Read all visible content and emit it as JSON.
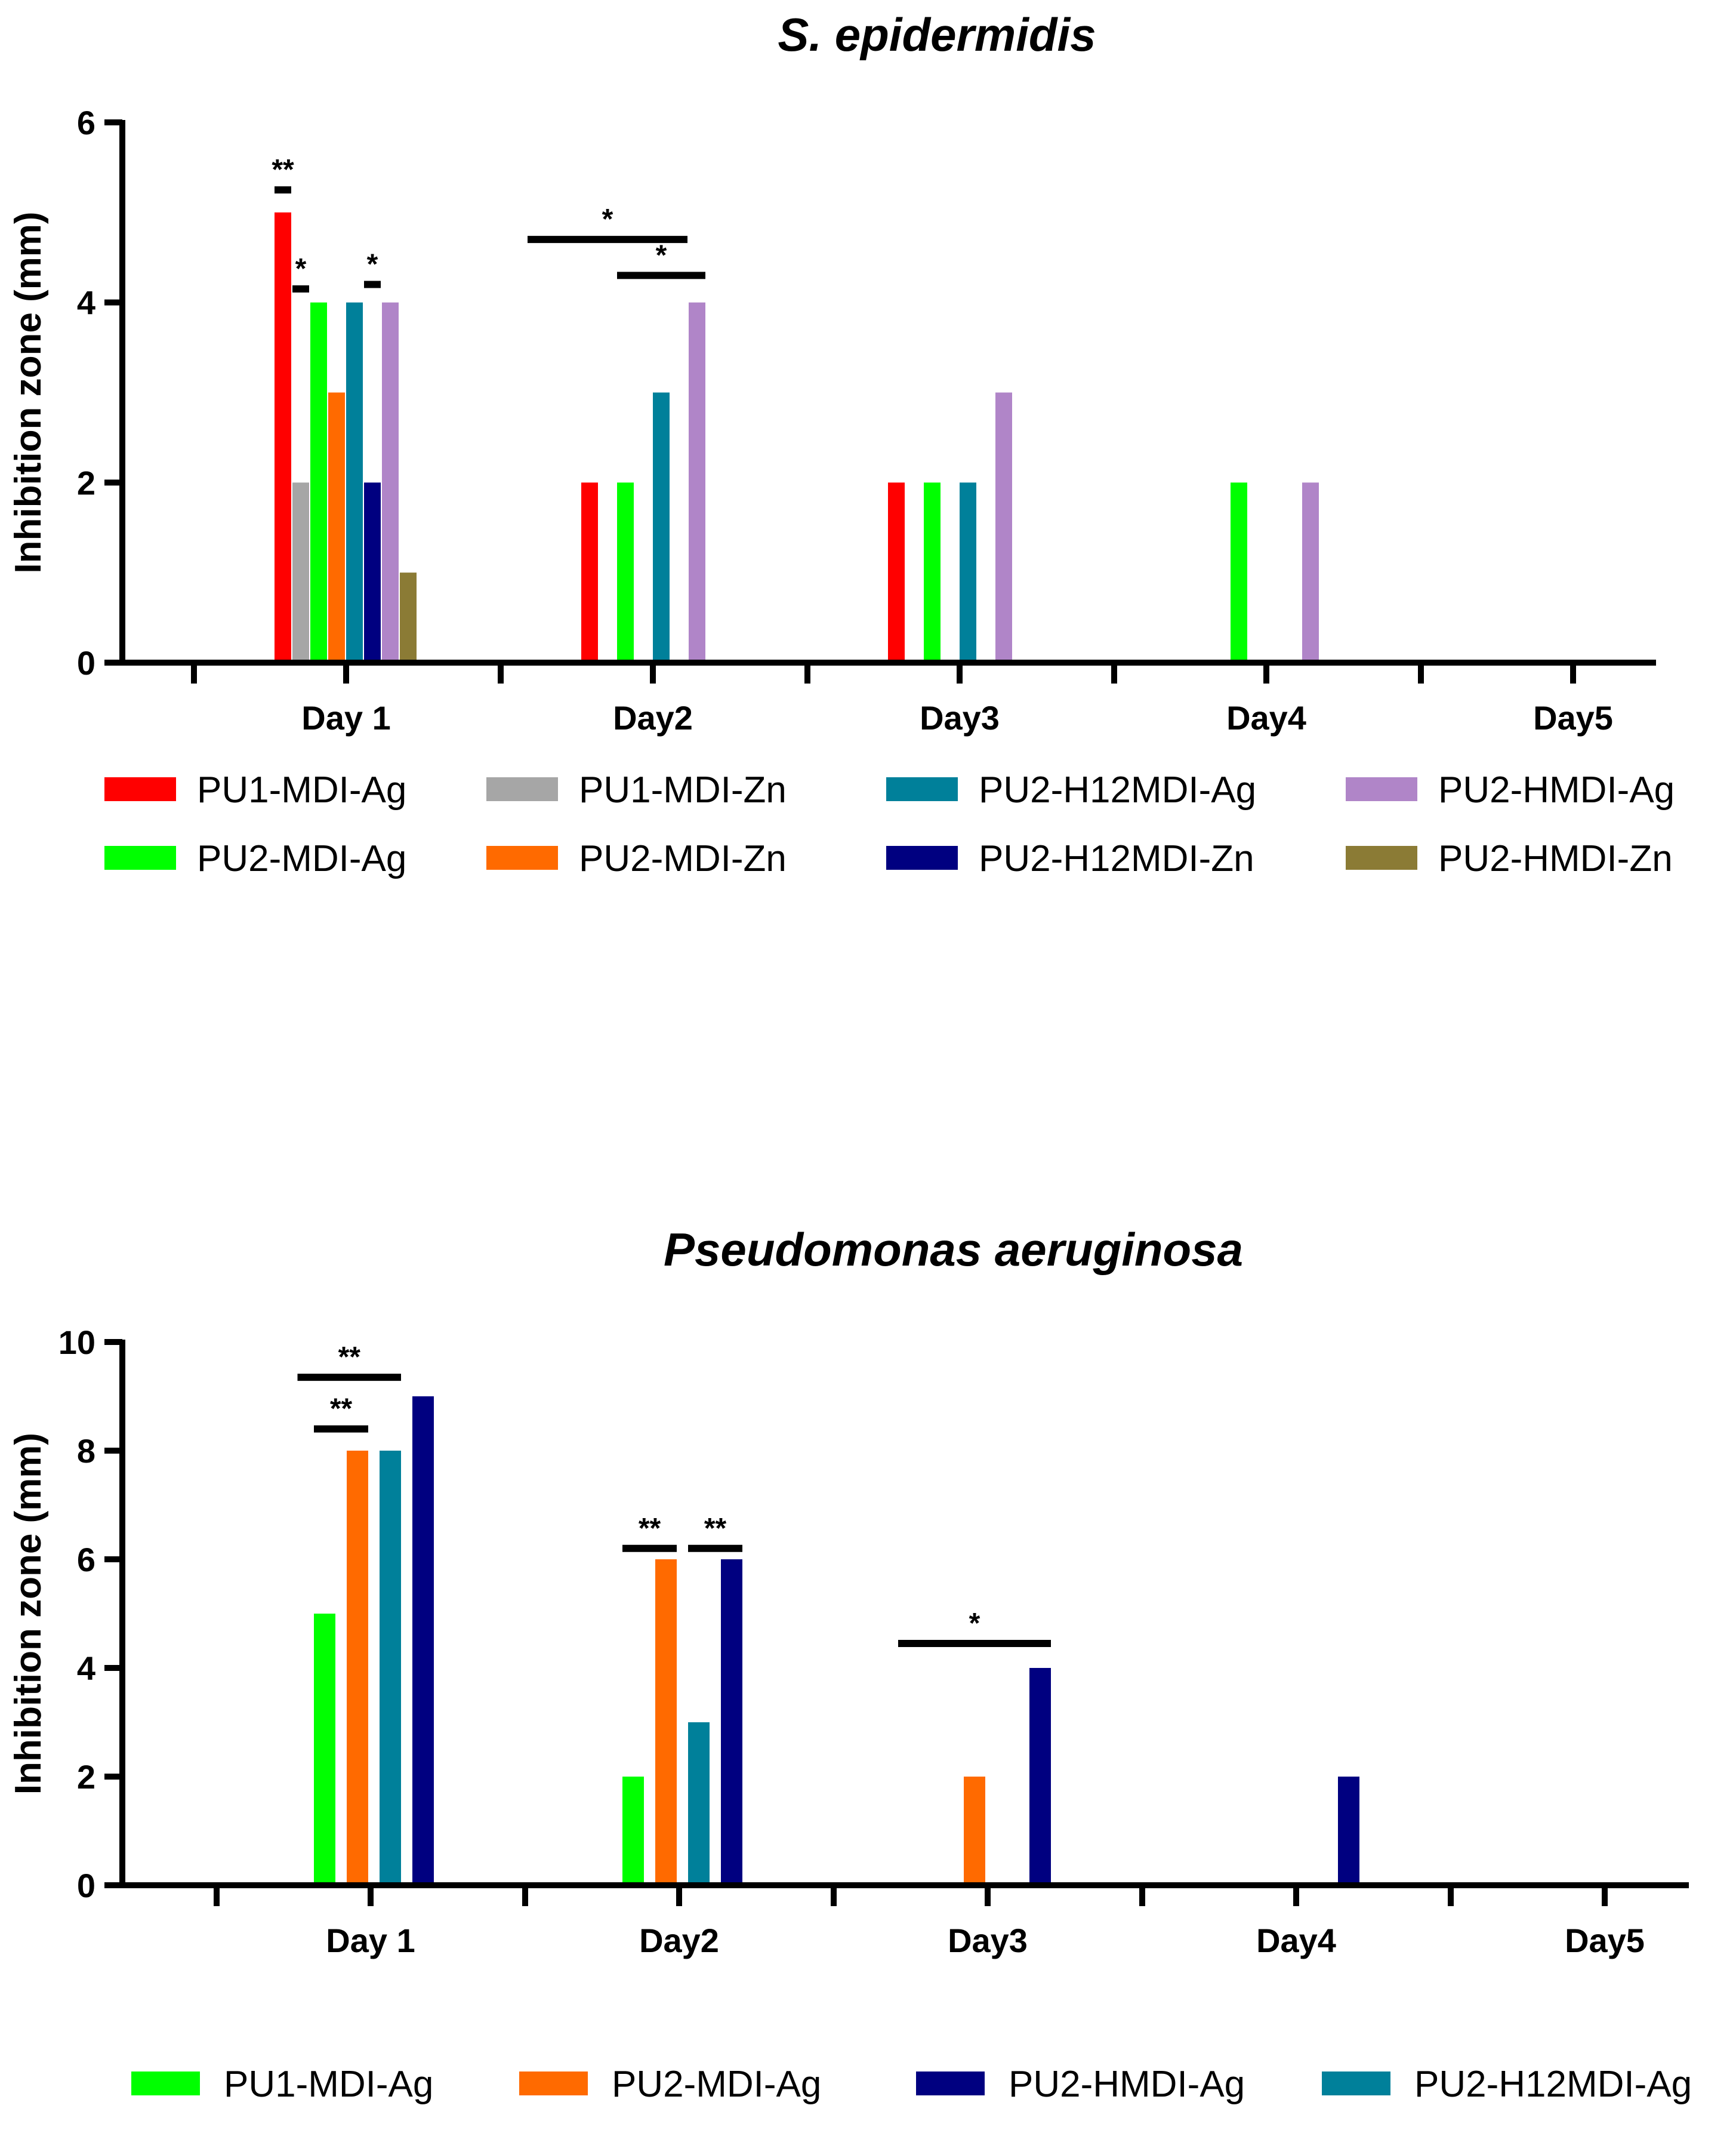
{
  "chart_data": [
    {
      "type": "bar",
      "title": "S. epidermidis",
      "xlabel": "",
      "ylabel": "Inhibition zone (mm)",
      "ylim": [
        0,
        6
      ],
      "yticks": [
        "0",
        "2",
        "4",
        "6"
      ],
      "categories": [
        "Day 1",
        "Day2",
        "Day3",
        "Day4",
        "Day5"
      ],
      "legend_position": "bottom",
      "series": [
        {
          "name": "PU1-MDI-Ag",
          "color": "#ff0000",
          "values": [
            5,
            2,
            2,
            0,
            0
          ]
        },
        {
          "name": "PU1-MDI-Zn",
          "color": "#a6a6a6",
          "values": [
            2,
            0,
            0,
            0,
            0
          ]
        },
        {
          "name": "PU2-MDI-Ag",
          "color": "#00ff00",
          "values": [
            4,
            2,
            2,
            2,
            0
          ]
        },
        {
          "name": "PU2-MDI-Zn",
          "color": "#ff6a00",
          "values": [
            3,
            0,
            0,
            0,
            0
          ]
        },
        {
          "name": "PU2-H12MDI-Ag",
          "color": "#00809a",
          "values": [
            4,
            3,
            2,
            0,
            0
          ]
        },
        {
          "name": "PU2-H12MDI-Zn",
          "color": "#000080",
          "values": [
            2,
            0,
            0,
            0,
            0
          ]
        },
        {
          "name": "PU2-HMDI-Ag",
          "color": "#b085c8",
          "values": [
            4,
            4,
            3,
            2,
            0
          ]
        },
        {
          "name": "PU2-HMDI-Zn",
          "color": "#8b7b35",
          "values": [
            1,
            0,
            0,
            0,
            0
          ]
        }
      ],
      "legend_order": [
        "PU1-MDI-Ag",
        "PU1-MDI-Zn",
        "PU2-H12MDI-Ag",
        "PU2-HMDI-Ag",
        "PU2-MDI-Ag",
        "PU2-MDI-Zn",
        "PU2-H12MDI-Zn",
        "PU2-HMDI-Zn"
      ],
      "significance": [
        {
          "label": "**",
          "category": 0,
          "from_series": 0,
          "to_series": 0,
          "level": 5.25
        },
        {
          "label": "*",
          "category": 0,
          "from_series": 1,
          "to_series": 1,
          "level": 4.15
        },
        {
          "label": "*",
          "category": 0,
          "from_series": 5,
          "to_series": 5,
          "level": 4.2
        },
        {
          "label": "*",
          "category": 1,
          "from_series": -3,
          "to_series": 5,
          "level": 4.7
        },
        {
          "label": "*",
          "category": 1,
          "from_series": 2,
          "to_series": 6,
          "level": 4.3
        }
      ]
    },
    {
      "type": "bar",
      "title": "Pseudomonas aeruginosa",
      "xlabel": "",
      "ylabel": "Inhibition zone (mm)",
      "ylim": [
        0,
        10
      ],
      "yticks": [
        "0",
        "2",
        "4",
        "6",
        "8",
        "10"
      ],
      "categories": [
        "Day 1",
        "Day2",
        "Day3",
        "Day4",
        "Day5"
      ],
      "legend_position": "bottom",
      "series": [
        {
          "name": "PU1-MDI-Ag",
          "color": "#00ff00",
          "values": [
            5,
            2,
            0,
            0,
            0
          ]
        },
        {
          "name": "PU2-MDI-Ag",
          "color": "#ff6a00",
          "values": [
            8,
            6,
            2,
            0,
            0
          ]
        },
        {
          "name": "PU2-H12MDI-Ag",
          "color": "#00809a",
          "values": [
            8,
            3,
            0,
            0,
            0
          ]
        },
        {
          "name": "PU2-HMDI-Ag",
          "color": "#000080",
          "values": [
            9,
            6,
            4,
            2,
            0
          ]
        }
      ],
      "legend_order": [
        "PU1-MDI-Ag",
        "PU2-MDI-Ag",
        "PU2-HMDI-Ag",
        "PU2-H12MDI-Ag"
      ],
      "significance": [
        {
          "label": "**",
          "category": 0,
          "from_series": -0.5,
          "to_series": 2,
          "level": 9.35
        },
        {
          "label": "**",
          "category": 0,
          "from_series": 0,
          "to_series": 1,
          "level": 8.4
        },
        {
          "label": "**",
          "category": 1,
          "from_series": 0,
          "to_series": 1,
          "level": 6.2
        },
        {
          "label": "**",
          "category": 1,
          "from_series": 2,
          "to_series": 3,
          "level": 6.2
        },
        {
          "label": "*",
          "category": 2,
          "from_series": -1,
          "to_series": 3,
          "level": 4.45
        }
      ]
    }
  ]
}
